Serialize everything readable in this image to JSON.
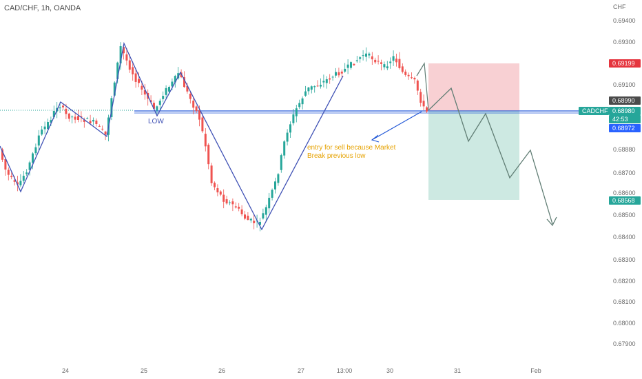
{
  "header": {
    "symbol_title": "CAD/CHF, 1h, OANDA"
  },
  "chart_data": {
    "type": "candlestick",
    "currency_label": "CHF",
    "y_ticks": [
      "0.69400",
      "0.69300",
      "0.69100",
      "0.68880",
      "0.68700",
      "0.68600",
      "0.68500",
      "0.68400",
      "0.68300",
      "0.68200",
      "0.68100",
      "0.68000",
      "0.67900"
    ],
    "x_ticks": [
      "24",
      "25",
      "26",
      "27",
      "13:00",
      "30",
      "31",
      "Feb"
    ],
    "price_badges": [
      {
        "label": "0.69199",
        "color": "#e5353e"
      },
      {
        "label": "0.68990",
        "color": "#4b4b4b"
      },
      {
        "label": "0.68980",
        "color": "#26a69a"
      },
      {
        "label": "42:53",
        "color": "#26a69a"
      },
      {
        "label": "0.68972",
        "color": "#2962ff"
      },
      {
        "label": "0.68568",
        "color": "#26a69a"
      }
    ],
    "symbol_tag": "CADCHF",
    "annotations": {
      "low_label": "LOW",
      "entry_note_line1": "entry for sell because Market",
      "entry_note_line2": "Break previous low"
    },
    "position": {
      "side": "short",
      "entry": 0.6898,
      "stop_loss": 0.69199,
      "take_profit": 0.68568
    },
    "colors": {
      "up": "#26a69a",
      "down": "#ef5350",
      "pattern_line": "#3f51b5",
      "projection_line": "#607d74",
      "support_line": "#1e55d6",
      "stop_zone": "#f8d0d3",
      "target_zone": "#cde9e2",
      "annotation_text": "#e6a200"
    }
  }
}
